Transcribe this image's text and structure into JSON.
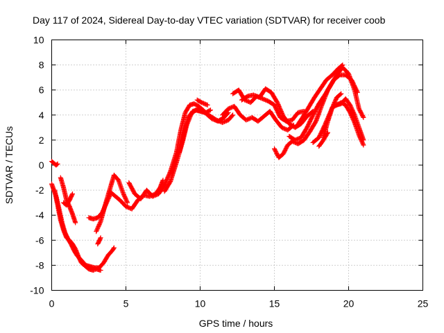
{
  "chart_data": {
    "type": "scatter",
    "title": "Day 117 of 2024, Sidereal Day-to-day VTEC variation (SDTVAR) for receiver coob",
    "xlabel": "GPS time / hours",
    "ylabel": "SDTVAR / TECUs",
    "xlim": [
      0,
      25
    ],
    "ylim": [
      -10,
      10
    ],
    "xticks": [
      0,
      5,
      10,
      15,
      20,
      25
    ],
    "yticks": [
      -10,
      -8,
      -6,
      -4,
      -2,
      0,
      2,
      4,
      6,
      8,
      10
    ],
    "grid": true,
    "marker": "+",
    "series": [
      {
        "name": "SDTVAR",
        "color": "#ff0000",
        "x": [
          0.0,
          0.3,
          0.4
        ],
        "y": [
          0.3,
          0.0,
          0.1
        ]
      },
      {
        "name": "SDTVAR",
        "color": "#ff0000",
        "x": [
          0.0,
          0.3,
          0.5,
          0.7,
          0.9,
          1.1,
          1.3,
          1.5,
          1.7,
          2.0,
          2.3,
          2.6,
          2.9,
          3.2,
          3.5,
          3.8,
          4.1,
          4.2
        ],
        "y": [
          -1.5,
          -2.5,
          -3.5,
          -4.6,
          -5.4,
          -5.9,
          -6.3,
          -6.8,
          -7.2,
          -7.6,
          -8.0,
          -8.1,
          -8.2,
          -8.2,
          -7.8,
          -7.2,
          -6.8,
          -6.6
        ]
      },
      {
        "name": "SDTVAR",
        "color": "#ff0000",
        "x": [
          0.2,
          0.4,
          0.6,
          0.8,
          1.0,
          1.2,
          1.4,
          1.6,
          1.8,
          2.0,
          2.2,
          2.5,
          2.8,
          3.0,
          3.3
        ],
        "y": [
          -2.0,
          -3.2,
          -4.4,
          -5.2,
          -5.8,
          -6.0,
          -6.3,
          -6.7,
          -7.3,
          -7.8,
          -8.0,
          -8.3,
          -8.4,
          -8.3,
          -8.4
        ]
      },
      {
        "name": "SDTVAR",
        "color": "#ff0000",
        "x": [
          0.6,
          0.8,
          1.0,
          1.2,
          1.4,
          1.6
        ],
        "y": [
          -1.0,
          -1.8,
          -2.8,
          -3.3,
          -3.9,
          -4.6
        ]
      },
      {
        "name": "SDTVAR",
        "color": "#ff0000",
        "x": [
          0.8,
          1.0,
          1.2,
          1.4
        ],
        "y": [
          -3.0,
          -3.2,
          -2.8,
          -2.3
        ]
      },
      {
        "name": "SDTVAR",
        "color": "#ff0000",
        "x": [
          2.5,
          2.8,
          3.1,
          3.4,
          3.7,
          4.0,
          4.3,
          4.6,
          5.0,
          5.4,
          5.8,
          6.2,
          6.6,
          7.0,
          7.3,
          7.5
        ],
        "y": [
          -4.2,
          -4.3,
          -4.2,
          -3.8,
          -3.0,
          -2.2,
          -2.5,
          -2.8,
          -3.3,
          -3.5,
          -2.8,
          -2.4,
          -2.5,
          -2.3,
          -1.8,
          -1.2
        ]
      },
      {
        "name": "SDTVAR",
        "color": "#ff0000",
        "x": [
          3.0,
          3.3,
          3.6,
          3.9,
          4.2,
          4.5,
          4.8,
          5.1
        ],
        "y": [
          -5.3,
          -4.5,
          -3.2,
          -2.0,
          -0.8,
          -1.2,
          -2.2,
          -3.0
        ]
      },
      {
        "name": "SDTVAR",
        "color": "#ff0000",
        "x": [
          3.1,
          3.3
        ],
        "y": [
          -6.3,
          -5.8
        ]
      },
      {
        "name": "SDTVAR",
        "color": "#ff0000",
        "x": [
          5.2,
          5.6,
          6.0,
          6.4,
          6.8,
          7.2,
          7.6,
          8.0,
          8.4,
          8.7,
          9.0,
          9.3,
          9.6,
          9.9,
          10.2,
          10.5,
          10.8,
          11.2,
          11.6,
          11.9
        ],
        "y": [
          -1.4,
          -2.3,
          -2.7,
          -2.0,
          -2.5,
          -2.3,
          -1.6,
          -0.5,
          1.0,
          2.8,
          4.2,
          4.8,
          4.9,
          4.7,
          4.4,
          4.0,
          3.7,
          3.5,
          3.8,
          4.2
        ]
      },
      {
        "name": "SDTVAR",
        "color": "#ff0000",
        "x": [
          7.6,
          8.0,
          8.4,
          8.8,
          9.1,
          9.4,
          9.7,
          10.0,
          10.3,
          10.7,
          11.1,
          11.5,
          11.9,
          12.2
        ],
        "y": [
          -2.1,
          -1.3,
          0.2,
          1.8,
          3.2,
          4.1,
          4.4,
          4.3,
          4.2,
          3.9,
          3.6,
          3.4,
          3.6,
          4.0
        ]
      },
      {
        "name": "SDTVAR",
        "color": "#ff0000",
        "x": [
          8.6,
          8.9,
          9.2,
          9.5,
          9.8,
          10.1,
          10.4,
          10.7
        ],
        "y": [
          1.0,
          2.5,
          3.8,
          4.3,
          4.4,
          4.3,
          4.2,
          4.4
        ]
      },
      {
        "name": "SDTVAR",
        "color": "#ff0000",
        "x": [
          9.8,
          10.1,
          10.5
        ],
        "y": [
          5.2,
          5.0,
          4.8
        ]
      },
      {
        "name": "SDTVAR",
        "color": "#ff0000",
        "x": [
          11.5,
          11.9,
          12.3,
          12.7,
          13.1,
          13.5,
          13.9,
          14.3,
          14.7,
          15.1,
          15.5,
          15.9,
          16.3
        ],
        "y": [
          4.0,
          4.5,
          4.7,
          4.0,
          3.6,
          3.8,
          3.5,
          3.9,
          4.3,
          3.6,
          3.0,
          2.8,
          3.2
        ]
      },
      {
        "name": "SDTVAR",
        "color": "#ff0000",
        "x": [
          12.2,
          12.6,
          13.0,
          13.4,
          13.8,
          14.2,
          14.6,
          15.0,
          15.4,
          15.8,
          16.2,
          16.6,
          17.0
        ],
        "y": [
          5.7,
          6.0,
          5.2,
          5.0,
          5.5,
          5.3,
          5.1,
          4.8,
          3.8,
          3.5,
          3.6,
          4.2,
          4.3
        ]
      },
      {
        "name": "SDTVAR",
        "color": "#ff0000",
        "x": [
          12.8,
          13.2,
          13.6,
          14.0,
          14.4,
          14.8,
          15.2,
          15.6,
          16.0,
          16.4,
          16.8,
          17.2,
          17.6
        ],
        "y": [
          5.2,
          5.5,
          5.6,
          5.4,
          6.1,
          5.8,
          5.0,
          3.9,
          3.3,
          3.0,
          3.3,
          3.9,
          4.3
        ]
      },
      {
        "name": "SDTVAR",
        "color": "#ff0000",
        "x": [
          15.0,
          15.3,
          15.6,
          15.9,
          16.2,
          16.6,
          17.0,
          17.4,
          17.8,
          18.2,
          18.6,
          19.0,
          19.4,
          19.8,
          20.2,
          20.6
        ],
        "y": [
          1.3,
          0.6,
          0.9,
          1.6,
          1.9,
          1.7,
          2.0,
          2.7,
          3.5,
          4.8,
          6.0,
          6.8,
          7.2,
          7.2,
          6.8,
          5.8
        ]
      },
      {
        "name": "SDTVAR",
        "color": "#ff0000",
        "x": [
          16.0,
          16.4,
          16.8,
          17.2,
          17.6,
          18.0,
          18.4,
          18.8,
          19.2,
          19.6,
          20.0,
          20.4,
          20.7,
          21.0
        ],
        "y": [
          2.3,
          2.0,
          2.2,
          3.0,
          4.0,
          4.9,
          5.6,
          6.4,
          7.2,
          7.8,
          7.3,
          6.0,
          4.5,
          3.8
        ]
      },
      {
        "name": "SDTVAR",
        "color": "#ff0000",
        "x": [
          16.5,
          16.9,
          17.3,
          17.7,
          18.1,
          18.5,
          18.9,
          19.3,
          19.6
        ],
        "y": [
          3.1,
          3.8,
          4.6,
          5.4,
          6.1,
          6.8,
          7.2,
          7.7,
          8.0
        ]
      },
      {
        "name": "SDTVAR",
        "color": "#ff0000",
        "x": [
          17.6,
          18.0,
          18.4,
          18.8,
          19.2,
          19.5
        ],
        "y": [
          1.8,
          2.2,
          3.2,
          4.3,
          5.4,
          5.7
        ]
      },
      {
        "name": "SDTVAR",
        "color": "#ff0000",
        "x": [
          18.3,
          18.6,
          18.9,
          19.2,
          19.5,
          19.8,
          20.1,
          20.4,
          20.7,
          21.0
        ],
        "y": [
          2.2,
          3.5,
          4.6,
          4.8,
          4.9,
          5.3,
          4.8,
          4.0,
          3.0,
          2.0
        ]
      },
      {
        "name": "SDTVAR",
        "color": "#ff0000",
        "x": [
          19.2,
          19.5,
          19.8,
          20.1,
          20.4,
          20.7,
          21.0
        ],
        "y": [
          4.8,
          5.0,
          4.8,
          4.2,
          3.4,
          2.4,
          1.6
        ]
      },
      {
        "name": "SDTVAR",
        "color": "#ff0000",
        "x": [
          18.0,
          18.3,
          18.6
        ],
        "y": [
          1.5,
          2.0,
          2.6
        ]
      }
    ]
  }
}
